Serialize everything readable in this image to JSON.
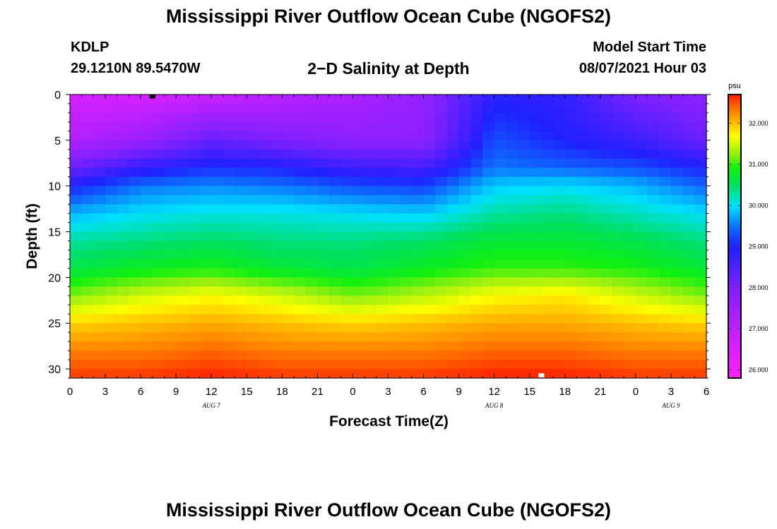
{
  "header": {
    "title": "Mississippi River Outflow Ocean Cube (NGOFS2)",
    "station": "KDLP",
    "latlon": "29.1210N  89.5470W",
    "subtitle": "2−D Salinity at Depth",
    "model_start_label": "Model Start Time",
    "model_start_value": "08/07/2021 Hour 03"
  },
  "footer": {
    "title": "Mississippi River Outflow Ocean Cube (NGOFS2)"
  },
  "chart_data": {
    "type": "heatmap",
    "title": "2−D Salinity at Depth",
    "xlabel": "Forecast Time(Z)",
    "ylabel": "Depth (ft)",
    "x_range": [
      0,
      54
    ],
    "x_unit": "hours from 00Z Aug 7",
    "y_range": [
      0,
      31
    ],
    "y_inverted": true,
    "x_tick_values": [
      0,
      3,
      6,
      9,
      12,
      15,
      18,
      21,
      24,
      27,
      30,
      33,
      36,
      39,
      42,
      45,
      48,
      51,
      54
    ],
    "x_tick_labels": [
      "0",
      "3",
      "6",
      "9",
      "12",
      "15",
      "18",
      "21",
      "0",
      "3",
      "6",
      "9",
      "12",
      "15",
      "18",
      "21",
      "0",
      "3",
      "6"
    ],
    "y_ticks": [
      0,
      5,
      10,
      15,
      20,
      25,
      30
    ],
    "y_tick_labels": [
      "0",
      "5",
      "10",
      "15",
      "20",
      "25",
      "30"
    ],
    "date_labels": [
      {
        "x": 12,
        "text": "AUG  7"
      },
      {
        "x": 36,
        "text": "AUG  8"
      },
      {
        "x": 51,
        "text": "AUG  9"
      }
    ],
    "markers": [
      {
        "x": 7,
        "depth": 0.2,
        "color": "#000000"
      },
      {
        "x": 40,
        "depth": 30.7,
        "color": "#ffffff"
      }
    ],
    "time_columns": [
      0,
      6,
      12,
      18,
      24,
      30,
      36,
      42,
      48,
      54
    ],
    "salinity_profiles": [
      {
        "depth": 0,
        "values": [
          26.6,
          26.6,
          26.8,
          27.1,
          27.3,
          27.7,
          28.9,
          28.8,
          28.0,
          27.8
        ]
      },
      {
        "depth": 5,
        "values": [
          27.2,
          27.6,
          28.3,
          28.0,
          27.8,
          27.8,
          29.3,
          29.0,
          28.7,
          28.2
        ]
      },
      {
        "depth": 8,
        "values": [
          28.2,
          28.8,
          29.1,
          29.0,
          28.7,
          28.6,
          29.5,
          29.4,
          29.3,
          29.0
        ]
      },
      {
        "depth": 10,
        "values": [
          29.0,
          29.5,
          29.6,
          29.5,
          29.3,
          29.2,
          29.9,
          30.0,
          29.8,
          29.4
        ]
      },
      {
        "depth": 13,
        "values": [
          29.8,
          30.0,
          30.1,
          30.1,
          30.0,
          29.9,
          30.3,
          30.4,
          30.2,
          30.0
        ]
      },
      {
        "depth": 16,
        "values": [
          30.3,
          30.4,
          30.5,
          30.4,
          30.4,
          30.5,
          30.7,
          30.7,
          30.6,
          30.4
        ]
      },
      {
        "depth": 19,
        "values": [
          30.6,
          30.8,
          30.9,
          30.7,
          30.6,
          30.8,
          31.0,
          31.0,
          30.9,
          30.7
        ]
      },
      {
        "depth": 22,
        "values": [
          31.2,
          31.5,
          31.7,
          31.5,
          31.2,
          31.4,
          31.7,
          31.8,
          31.5,
          31.2
        ]
      },
      {
        "depth": 25,
        "values": [
          31.9,
          32.0,
          32.1,
          32.0,
          31.9,
          32.0,
          32.1,
          32.1,
          32.0,
          31.9
        ]
      },
      {
        "depth": 28,
        "values": [
          32.3,
          32.3,
          32.4,
          32.3,
          32.3,
          32.3,
          32.4,
          32.4,
          32.3,
          32.3
        ]
      },
      {
        "depth": 31,
        "values": [
          32.6,
          32.6,
          32.7,
          32.6,
          32.6,
          32.6,
          32.7,
          32.7,
          32.6,
          32.6
        ]
      }
    ],
    "colorbar": {
      "unit": "psu",
      "min": 25.8,
      "max": 32.7,
      "tick_values": [
        26,
        27,
        28,
        29,
        30,
        31,
        32
      ],
      "tick_labels": [
        "26.000",
        "27.000",
        "28.000",
        "29.000",
        "30.000",
        "31.000",
        "32.000"
      ],
      "color_stops": [
        {
          "value": 25.8,
          "color": "#ff20ff"
        },
        {
          "value": 27.0,
          "color": "#c020ff"
        },
        {
          "value": 28.0,
          "color": "#8020ff"
        },
        {
          "value": 29.0,
          "color": "#2020ff"
        },
        {
          "value": 29.4,
          "color": "#1060ff"
        },
        {
          "value": 30.0,
          "color": "#00e0ff"
        },
        {
          "value": 30.5,
          "color": "#00e060"
        },
        {
          "value": 30.9,
          "color": "#10f010"
        },
        {
          "value": 31.3,
          "color": "#a0f010"
        },
        {
          "value": 31.7,
          "color": "#ffff00"
        },
        {
          "value": 32.0,
          "color": "#ffc000"
        },
        {
          "value": 32.3,
          "color": "#ff8000"
        },
        {
          "value": 32.7,
          "color": "#ff2000"
        }
      ]
    }
  }
}
